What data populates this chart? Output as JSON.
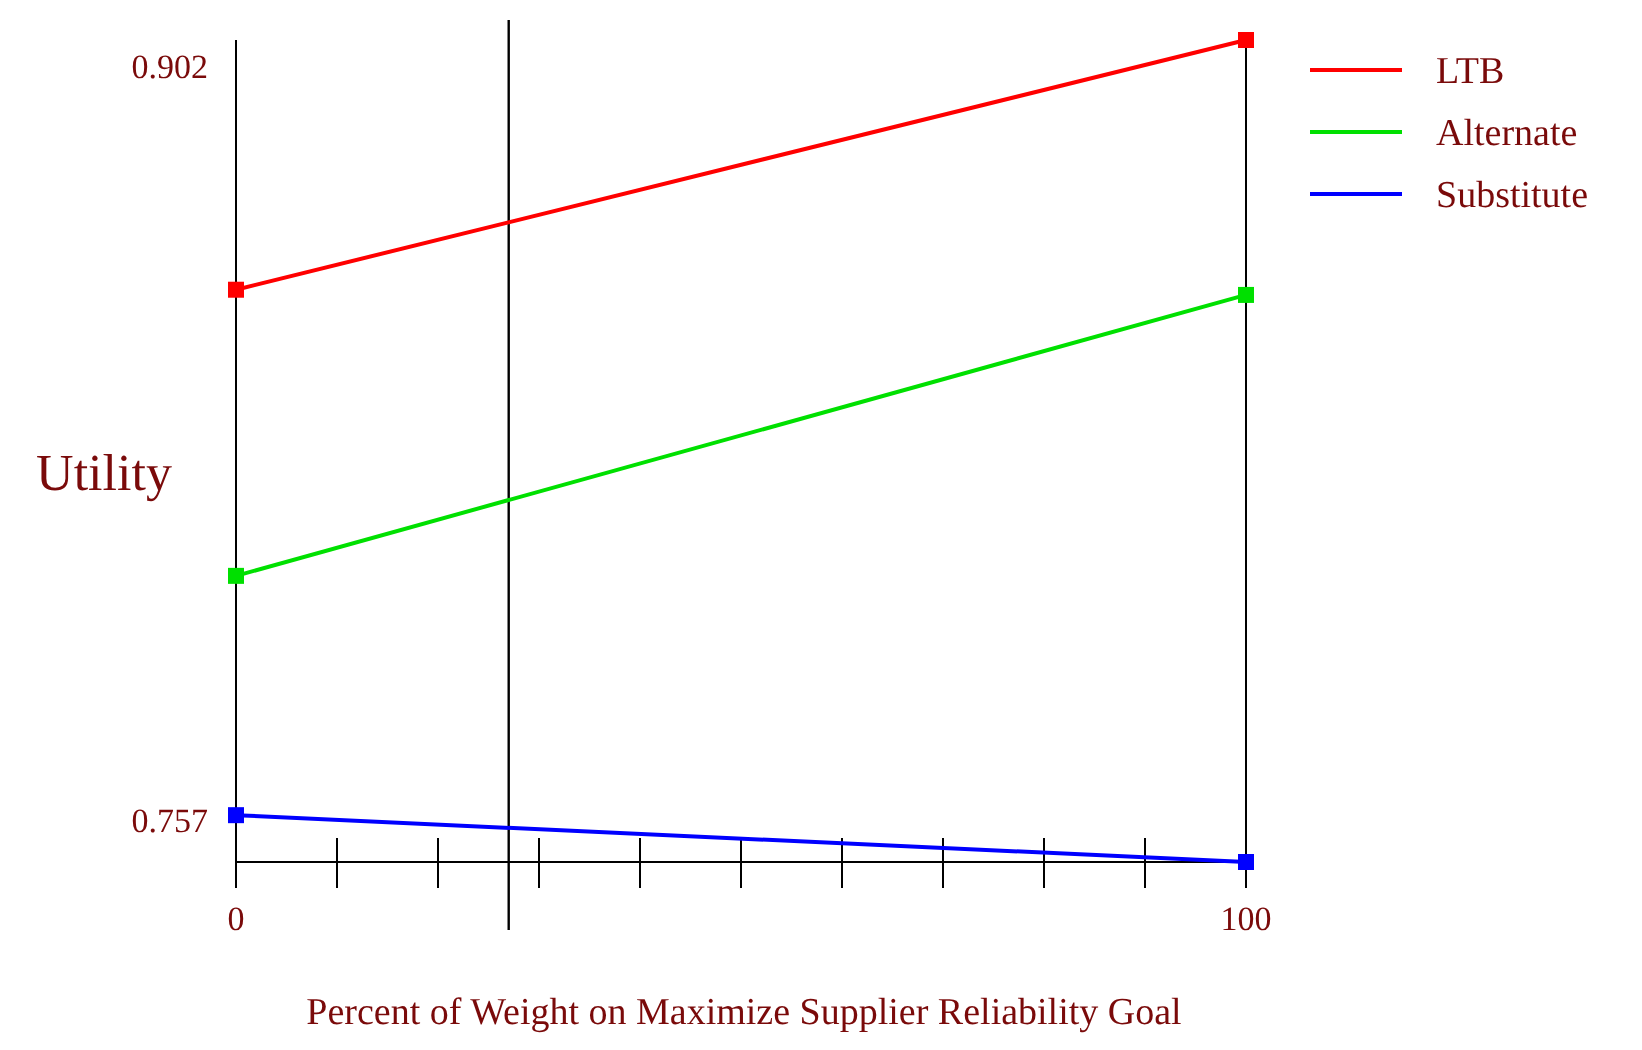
{
  "chart_data": {
    "type": "line",
    "xlabel": "Percent of Weight on Maximize Supplier Reliability Goal",
    "ylabel": "Utility",
    "x": [
      0,
      100
    ],
    "xlim": [
      0,
      100
    ],
    "xticks": [
      0,
      {
        "value": 10,
        "label": null
      },
      {
        "value": 20,
        "label": null
      },
      {
        "value": 30,
        "label": null
      },
      {
        "value": 40,
        "label": null
      },
      {
        "value": 50,
        "label": null
      },
      {
        "value": 60,
        "label": null
      },
      {
        "value": 70,
        "label": null
      },
      {
        "value": 80,
        "label": null
      },
      {
        "value": 90,
        "label": null
      },
      100
    ],
    "ylim": [
      0.749,
      0.907
    ],
    "yticks": [
      0.757,
      0.902
    ],
    "series": [
      {
        "name": "LTB",
        "color": "#ff0000",
        "values": [
          0.859,
          0.907
        ]
      },
      {
        "name": "Alternate",
        "color": "#00e000",
        "values": [
          0.804,
          0.858
        ]
      },
      {
        "name": "Substitute",
        "color": "#0000ff",
        "values": [
          0.758,
          0.749
        ]
      }
    ],
    "ref_lines": [
      {
        "axis": "x",
        "value": 27,
        "color": "#000000"
      }
    ],
    "marker": "square",
    "line_style": "solid",
    "grid": false,
    "legend": "top right"
  }
}
